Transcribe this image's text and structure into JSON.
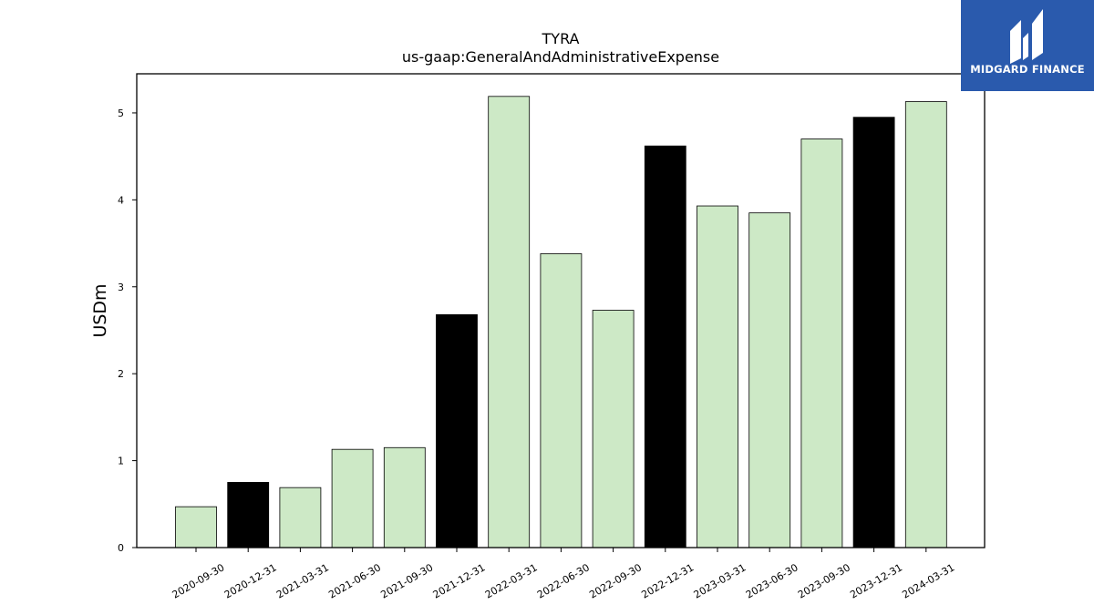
{
  "chart_data": {
    "type": "bar",
    "title": "TYRA",
    "subtitle": "us-gaap:GeneralAndAdministrativeExpense",
    "xlabel": "",
    "ylabel": "USDm",
    "ylim": [
      0,
      5.45
    ],
    "yticks": [
      "0",
      "1",
      "2",
      "3",
      "4",
      "5"
    ],
    "categories": [
      "2020-09-30",
      "2020-12-31",
      "2021-03-31",
      "2021-06-30",
      "2021-09-30",
      "2021-12-31",
      "2022-03-31",
      "2022-06-30",
      "2022-09-30",
      "2022-12-31",
      "2023-03-31",
      "2023-06-30",
      "2023-09-30",
      "2023-12-31",
      "2024-03-31"
    ],
    "values": [
      0.47,
      0.75,
      0.69,
      1.13,
      1.15,
      2.68,
      5.19,
      3.38,
      2.73,
      4.62,
      3.93,
      3.85,
      4.7,
      4.95,
      5.13
    ],
    "highlight": [
      false,
      true,
      false,
      false,
      false,
      true,
      false,
      false,
      false,
      true,
      false,
      false,
      false,
      true,
      false
    ],
    "colors": {
      "bar": "#cde9c6",
      "highlight": "#000000",
      "edge": "#000000"
    },
    "grid": false
  },
  "logo": {
    "text": "MIDGARD FINANCE",
    "color": "#2a5aad"
  }
}
